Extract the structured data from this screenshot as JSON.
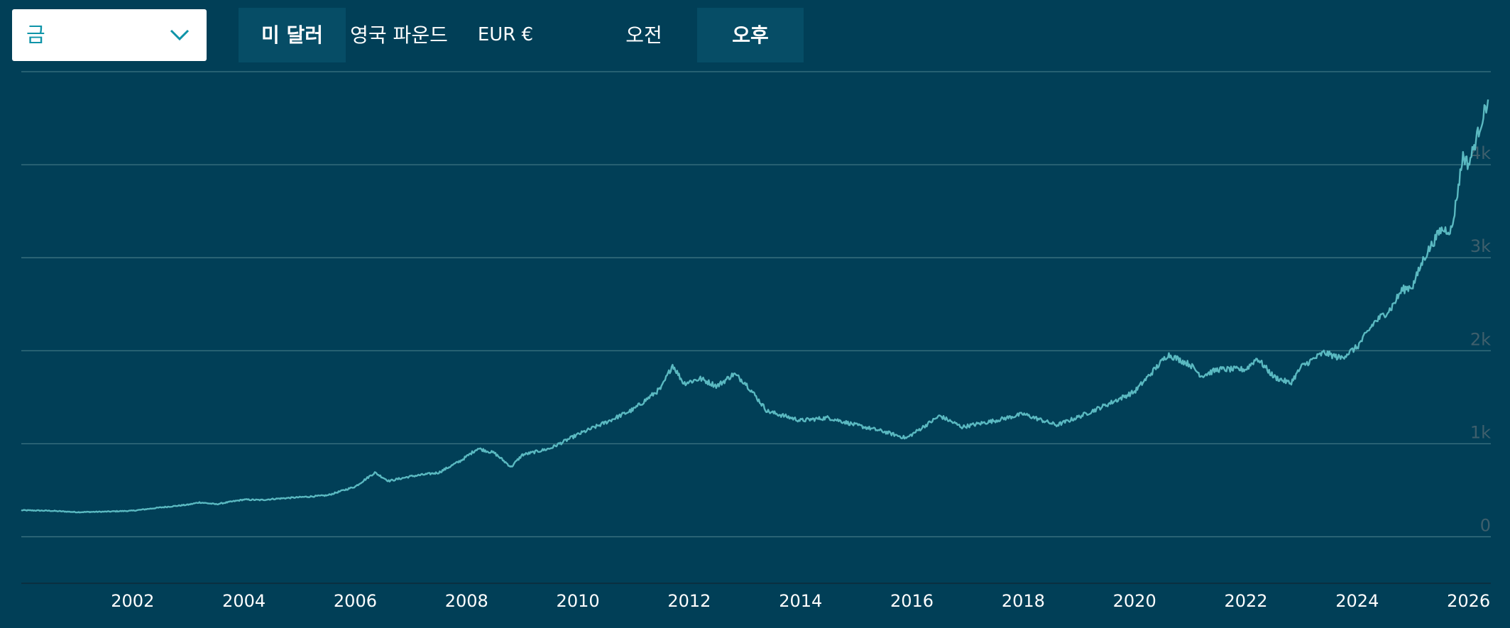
{
  "metal_selector": {
    "value": "금"
  },
  "currency_tabs": [
    {
      "label": "미 달러",
      "active": true
    },
    {
      "label": "영국 파운드",
      "active": false
    },
    {
      "label": "EUR €",
      "active": false
    }
  ],
  "time_tabs": [
    {
      "label": "오전",
      "active": false
    },
    {
      "label": "오후",
      "active": true
    }
  ],
  "colors": {
    "background": "#013f57",
    "line": "#5ab9c1",
    "grid": "#3d7482",
    "active_tab": "#064d66",
    "select_accent": "#0e94a8"
  },
  "chart_data": {
    "type": "line",
    "title": "",
    "xlabel": "",
    "ylabel": "",
    "xlim": [
      2000.0,
      2026.4
    ],
    "ylim": [
      -500,
      5000
    ],
    "y_ticks": [
      {
        "value": 0,
        "label": "0"
      },
      {
        "value": 1000,
        "label": "1k"
      },
      {
        "value": 2000,
        "label": "2k"
      },
      {
        "value": 3000,
        "label": "3k"
      },
      {
        "value": 4000,
        "label": "4k"
      }
    ],
    "x_ticks": [
      {
        "value": 2002,
        "label": "2002"
      },
      {
        "value": 2004,
        "label": "2004"
      },
      {
        "value": 2006,
        "label": "2006"
      },
      {
        "value": 2008,
        "label": "2008"
      },
      {
        "value": 2010,
        "label": "2010"
      },
      {
        "value": 2012,
        "label": "2012"
      },
      {
        "value": 2014,
        "label": "2014"
      },
      {
        "value": 2016,
        "label": "2016"
      },
      {
        "value": 2018,
        "label": "2018"
      },
      {
        "value": 2020,
        "label": "2020"
      },
      {
        "value": 2022,
        "label": "2022"
      },
      {
        "value": 2024,
        "label": "2024"
      },
      {
        "value": 2026,
        "label": "2026"
      }
    ],
    "grid": true,
    "series": [
      {
        "x": [
          2000.0,
          2000.5,
          2001.0,
          2001.5,
          2002.0,
          2002.5,
          2003.0,
          2003.2,
          2003.5,
          2004.0,
          2004.3,
          2004.6,
          2005.0,
          2005.5,
          2006.0,
          2006.35,
          2006.6,
          2007.0,
          2007.5,
          2007.9,
          2008.2,
          2008.5,
          2008.8,
          2009.0,
          2009.5,
          2010.0,
          2010.5,
          2011.0,
          2011.5,
          2011.7,
          2011.9,
          2012.2,
          2012.5,
          2012.8,
          2013.0,
          2013.4,
          2013.7,
          2014.0,
          2014.5,
          2015.0,
          2015.5,
          2015.9,
          2016.5,
          2016.9,
          2017.5,
          2018.0,
          2018.6,
          2019.0,
          2019.5,
          2020.0,
          2020.6,
          2021.0,
          2021.2,
          2021.5,
          2022.0,
          2022.2,
          2022.5,
          2022.8,
          2023.0,
          2023.4,
          2023.7,
          2024.0,
          2024.3,
          2024.6,
          2024.8,
          2025.0,
          2025.2,
          2025.5,
          2025.7,
          2025.9,
          2026.0,
          2026.2,
          2026.35
        ],
        "values": [
          285,
          280,
          265,
          270,
          280,
          315,
          345,
          370,
          350,
          400,
          395,
          410,
          425,
          445,
          540,
          690,
          600,
          650,
          690,
          820,
          950,
          900,
          750,
          880,
          950,
          1100,
          1230,
          1370,
          1600,
          1850,
          1650,
          1700,
          1620,
          1750,
          1660,
          1350,
          1300,
          1250,
          1280,
          1200,
          1130,
          1060,
          1300,
          1180,
          1250,
          1320,
          1200,
          1290,
          1420,
          1560,
          1960,
          1850,
          1730,
          1800,
          1800,
          1920,
          1720,
          1650,
          1830,
          1980,
          1920,
          2040,
          2300,
          2450,
          2650,
          2700,
          3000,
          3300,
          3300,
          4100,
          4000,
          4400,
          4700
        ]
      }
    ]
  }
}
